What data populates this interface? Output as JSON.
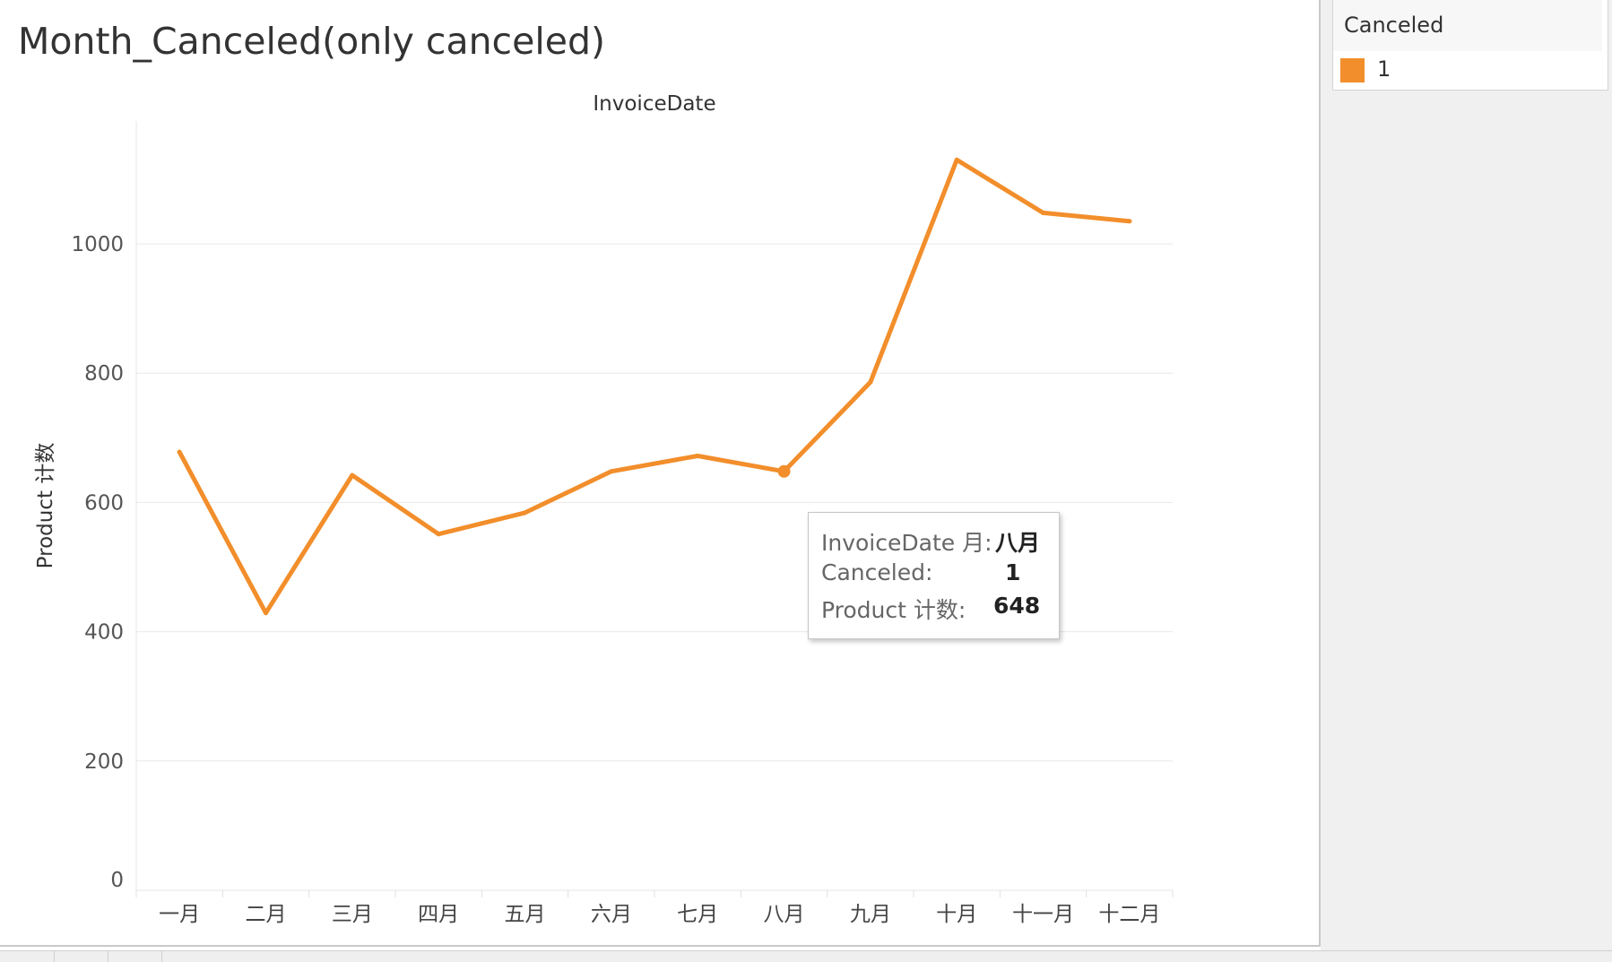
{
  "sheet": {
    "title": "Month_Canceled(only canceled)"
  },
  "legend": {
    "title": "Canceled",
    "items": [
      {
        "label": "1",
        "color": "#F28E2B"
      }
    ]
  },
  "tooltip": {
    "rows": [
      {
        "key": "InvoiceDate 月:",
        "value": "八月"
      },
      {
        "key": "Canceled:",
        "value": "1"
      },
      {
        "key": "Product 计数:",
        "value": "648"
      }
    ]
  },
  "chart_data": {
    "type": "line",
    "title": "InvoiceDate",
    "xlabel": "",
    "ylabel": "Product 计数",
    "categories": [
      "一月",
      "二月",
      "三月",
      "四月",
      "五月",
      "六月",
      "七月",
      "八月",
      "九月",
      "十月",
      "十一月",
      "十二月"
    ],
    "series": [
      {
        "name": "1",
        "color": "#F28E2B",
        "values": [
          678,
          429,
          642,
          551,
          584,
          648,
          672,
          648,
          786,
          1130,
          1048,
          1035
        ]
      }
    ],
    "y_ticks": [
      0,
      200,
      400,
      600,
      800,
      1000
    ],
    "ylim": [
      0,
      1190
    ],
    "grid": true,
    "legend": "right",
    "highlight_index": 7
  }
}
